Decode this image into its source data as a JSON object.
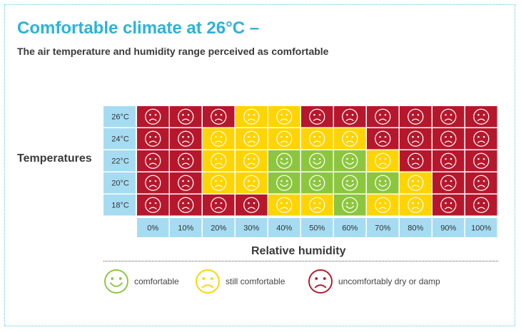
{
  "title": "Comfortable climate at 26°C –",
  "subtitle": "The air temperature and humidity range perceived as comfortable",
  "colors": {
    "comfortable": "#8cc63f",
    "still_comfortable": "#ffd400",
    "uncomfortable": "#b7172c",
    "axis_cell": "#a6dcf2",
    "accent": "#2bb3d8"
  },
  "legend": [
    {
      "key": "comfortable",
      "label": "comfortable",
      "face": "smile"
    },
    {
      "key": "still_comfortable",
      "label": "still comfortable",
      "face": "frown"
    },
    {
      "key": "uncomfortable",
      "label": "uncomfortably dry or damp",
      "face": "frown"
    }
  ],
  "chart_data": {
    "type": "heatmap",
    "ylabel": "Temperatures",
    "xlabel": "Relative humidity",
    "x": [
      "0%",
      "10%",
      "20%",
      "30%",
      "40%",
      "50%",
      "60%",
      "70%",
      "80%",
      "90%",
      "100%"
    ],
    "y": [
      "26°C",
      "24°C",
      "22°C",
      "20°C",
      "18°C"
    ],
    "values": [
      [
        "uncomfortable",
        "uncomfortable",
        "uncomfortable",
        "still_comfortable",
        "still_comfortable",
        "uncomfortable",
        "uncomfortable",
        "uncomfortable",
        "uncomfortable",
        "uncomfortable",
        "uncomfortable"
      ],
      [
        "uncomfortable",
        "uncomfortable",
        "still_comfortable",
        "still_comfortable",
        "still_comfortable",
        "still_comfortable",
        "still_comfortable",
        "uncomfortable",
        "uncomfortable",
        "uncomfortable",
        "uncomfortable"
      ],
      [
        "uncomfortable",
        "uncomfortable",
        "still_comfortable",
        "still_comfortable",
        "comfortable",
        "comfortable",
        "comfortable",
        "still_comfortable",
        "uncomfortable",
        "uncomfortable",
        "uncomfortable"
      ],
      [
        "uncomfortable",
        "uncomfortable",
        "still_comfortable",
        "still_comfortable",
        "comfortable",
        "comfortable",
        "comfortable",
        "comfortable",
        "still_comfortable",
        "uncomfortable",
        "uncomfortable"
      ],
      [
        "uncomfortable",
        "uncomfortable",
        "uncomfortable",
        "uncomfortable",
        "still_comfortable",
        "still_comfortable",
        "comfortable",
        "still_comfortable",
        "still_comfortable",
        "uncomfortable",
        "uncomfortable"
      ]
    ],
    "faces": {
      "comfortable": "smile",
      "still_comfortable": "frown",
      "uncomfortable": "frown"
    }
  }
}
